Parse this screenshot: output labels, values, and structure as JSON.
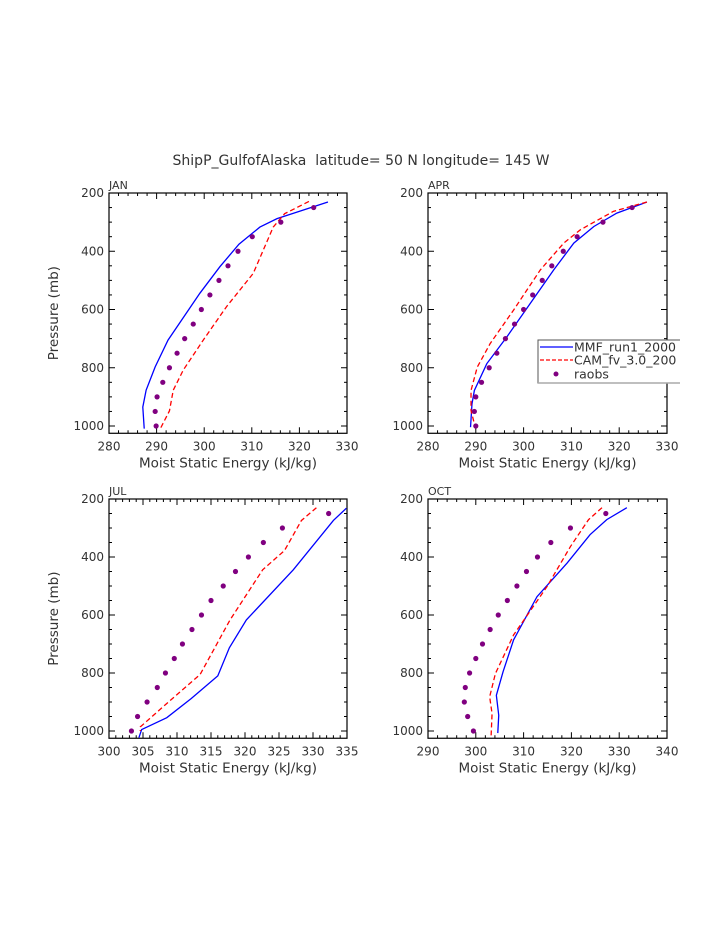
{
  "title": "ShipP_GulfofAlaska  latitude= 50 N longitude= 145 W",
  "colors": {
    "mmf": "#0000ff",
    "cam": "#ff0000",
    "obs": "#800080",
    "axis": "#000000"
  },
  "legend": {
    "placement": "inside APR panel, right",
    "entries": [
      {
        "label": "MMF_run1_2000",
        "style": "solid",
        "color": "#0000ff"
      },
      {
        "label": "CAM_fv_3.0_200",
        "style": "dashed",
        "color": "#ff0000"
      },
      {
        "label": "raobs",
        "style": "marker",
        "color": "#800080"
      }
    ]
  },
  "chart_data": [
    {
      "type": "line",
      "panel_label": "JAN",
      "xlabel": "Moist Static Energy (kJ/kg)",
      "ylabel": "Pressure (mb)",
      "xlim": [
        280,
        330
      ],
      "xticks": [
        280,
        290,
        300,
        310,
        320,
        330
      ],
      "ylim": [
        200,
        1025
      ],
      "yticks": [
        200,
        400,
        600,
        800,
        1000
      ],
      "y_inverted": true,
      "series": [
        {
          "name": "MMF_run1_2000",
          "points": [
            [
              326.0,
              231
            ],
            [
              315.3,
              288
            ],
            [
              311.7,
              317
            ],
            [
              307.3,
              376
            ],
            [
              303.3,
              453
            ],
            [
              299.1,
              544
            ],
            [
              292.4,
              705
            ],
            [
              289.7,
              797
            ],
            [
              287.8,
              877
            ],
            [
              287.1,
              935
            ],
            [
              287.4,
              1009
            ]
          ]
        },
        {
          "name": "CAM_fv_3.0_200",
          "points": [
            [
              322.0,
              229
            ],
            [
              316.9,
              271
            ],
            [
              314.5,
              317
            ],
            [
              310.3,
              476
            ],
            [
              304.7,
              590
            ],
            [
              299.8,
              705
            ],
            [
              295.6,
              808
            ],
            [
              293.5,
              877
            ],
            [
              292.7,
              948
            ],
            [
              290.6,
              1015
            ]
          ]
        },
        {
          "name": "raobs",
          "points": [
            [
              323.0,
              250
            ],
            [
              316.1,
              300
            ],
            [
              310.1,
              350
            ],
            [
              307.1,
              400
            ],
            [
              305.0,
              450
            ],
            [
              303.1,
              500
            ],
            [
              301.2,
              550
            ],
            [
              299.4,
              600
            ],
            [
              297.7,
              650
            ],
            [
              295.9,
              700
            ],
            [
              294.3,
              750
            ],
            [
              292.7,
              800
            ],
            [
              291.3,
              850
            ],
            [
              290.1,
              900
            ],
            [
              289.7,
              950
            ],
            [
              289.9,
              1000
            ]
          ]
        }
      ]
    },
    {
      "type": "line",
      "panel_label": "APR",
      "xlabel": "Moist Static Energy (kJ/kg)",
      "ylabel": "",
      "xlim": [
        280,
        330
      ],
      "xticks": [
        280,
        290,
        300,
        310,
        320,
        330
      ],
      "ylim": [
        200,
        1025
      ],
      "yticks": [
        200,
        400,
        600,
        800,
        1000
      ],
      "y_inverted": true,
      "series": [
        {
          "name": "MMF_run1_2000",
          "points": [
            [
              325.8,
              231
            ],
            [
              319.5,
              269
            ],
            [
              314.7,
              315
            ],
            [
              310.5,
              372
            ],
            [
              306.3,
              464
            ],
            [
              301.4,
              579
            ],
            [
              296.5,
              694
            ],
            [
              292.3,
              786
            ],
            [
              289.7,
              878
            ],
            [
              289.2,
              924
            ],
            [
              288.9,
              1004
            ]
          ]
        },
        {
          "name": "CAM_fv_3.0_200",
          "points": [
            [
              325.8,
              231
            ],
            [
              318.8,
              263
            ],
            [
              311.9,
              326
            ],
            [
              308.4,
              372
            ],
            [
              303.5,
              464
            ],
            [
              297.9,
              602
            ],
            [
              293.0,
              717
            ],
            [
              290.3,
              798
            ],
            [
              289.0,
              878
            ],
            [
              289.0,
              947
            ],
            [
              289.9,
              1005
            ]
          ]
        },
        {
          "name": "raobs",
          "points": [
            [
              322.7,
              250
            ],
            [
              316.6,
              300
            ],
            [
              311.2,
              350
            ],
            [
              308.3,
              400
            ],
            [
              305.9,
              450
            ],
            [
              303.9,
              500
            ],
            [
              301.9,
              550
            ],
            [
              300.0,
              600
            ],
            [
              298.1,
              650
            ],
            [
              296.2,
              700
            ],
            [
              294.4,
              750
            ],
            [
              292.8,
              800
            ],
            [
              291.2,
              850
            ],
            [
              290.0,
              900
            ],
            [
              289.7,
              950
            ],
            [
              290.0,
              1000
            ]
          ]
        }
      ]
    },
    {
      "type": "line",
      "panel_label": "JUL",
      "xlabel": "Moist Static Energy (kJ/kg)",
      "ylabel": "Pressure (mb)",
      "xlim": [
        300,
        335
      ],
      "xticks": [
        300,
        305,
        310,
        315,
        320,
        325,
        330,
        335
      ],
      "ylim": [
        200,
        1025
      ],
      "yticks": [
        200,
        400,
        600,
        800,
        1000
      ],
      "y_inverted": true,
      "series": [
        {
          "name": "MMF_run1_2000",
          "points": [
            [
              334.9,
              232
            ],
            [
              333.0,
              274
            ],
            [
              327.1,
              444
            ],
            [
              320.2,
              617
            ],
            [
              317.7,
              713
            ],
            [
              316.0,
              810
            ],
            [
              312.1,
              888
            ],
            [
              308.5,
              954
            ],
            [
              304.8,
              995
            ],
            [
              304.4,
              1023
            ]
          ]
        },
        {
          "name": "CAM_fv_3.0_200",
          "points": [
            [
              330.5,
              230
            ],
            [
              328.3,
              274
            ],
            [
              325.8,
              378
            ],
            [
              322.6,
              444
            ],
            [
              317.8,
              617
            ],
            [
              313.4,
              805
            ],
            [
              308.5,
              905
            ],
            [
              304.6,
              986
            ],
            [
              304.6,
              1000
            ]
          ]
        },
        {
          "name": "raobs",
          "points": [
            [
              332.3,
              250
            ],
            [
              325.5,
              300
            ],
            [
              322.7,
              350
            ],
            [
              320.5,
              400
            ],
            [
              318.6,
              450
            ],
            [
              316.8,
              500
            ],
            [
              315.0,
              550
            ],
            [
              313.6,
              600
            ],
            [
              312.2,
              650
            ],
            [
              310.8,
              700
            ],
            [
              309.6,
              750
            ],
            [
              308.3,
              800
            ],
            [
              307.1,
              850
            ],
            [
              305.6,
              900
            ],
            [
              304.2,
              950
            ],
            [
              303.3,
              1000
            ]
          ]
        }
      ]
    },
    {
      "type": "line",
      "panel_label": "OCT",
      "xlabel": "Moist Static Energy (kJ/kg)",
      "ylabel": "",
      "xlim": [
        290,
        340
      ],
      "xticks": [
        290,
        300,
        310,
        320,
        330,
        340
      ],
      "ylim": [
        200,
        1025
      ],
      "yticks": [
        200,
        400,
        600,
        800,
        1000
      ],
      "y_inverted": true,
      "series": [
        {
          "name": "MMF_run1_2000",
          "points": [
            [
              331.6,
              230
            ],
            [
              327.4,
              271
            ],
            [
              323.9,
              323
            ],
            [
              319.1,
              421
            ],
            [
              312.8,
              537
            ],
            [
              307.9,
              686
            ],
            [
              305.7,
              796
            ],
            [
              304.3,
              877
            ],
            [
              304.8,
              946
            ],
            [
              304.6,
              1007
            ]
          ]
        },
        {
          "name": "CAM_fv_3.0_200",
          "points": [
            [
              326.4,
              230
            ],
            [
              323.6,
              271
            ],
            [
              319.8,
              364
            ],
            [
              314.9,
              502
            ],
            [
              307.9,
              669
            ],
            [
              304.1,
              802
            ],
            [
              302.9,
              882
            ],
            [
              303.4,
              940
            ],
            [
              303.2,
              1018
            ]
          ]
        },
        {
          "name": "raobs",
          "points": [
            [
              327.2,
              250
            ],
            [
              319.8,
              300
            ],
            [
              315.7,
              350
            ],
            [
              312.9,
              400
            ],
            [
              310.6,
              450
            ],
            [
              308.6,
              500
            ],
            [
              306.6,
              550
            ],
            [
              304.7,
              600
            ],
            [
              303.0,
              650
            ],
            [
              301.4,
              700
            ],
            [
              300.0,
              750
            ],
            [
              298.7,
              800
            ],
            [
              297.8,
              850
            ],
            [
              297.6,
              900
            ],
            [
              298.3,
              950
            ],
            [
              299.5,
              1000
            ]
          ]
        }
      ]
    }
  ]
}
